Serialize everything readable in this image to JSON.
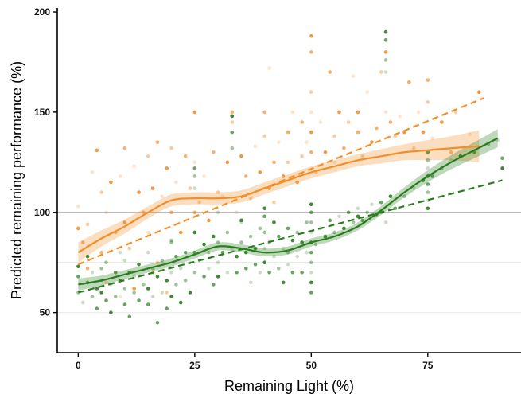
{
  "chart_data": {
    "type": "scatter",
    "title": "",
    "xlabel": "Remaining Light (%)",
    "ylabel": "Predicted remaining performance (%)",
    "xlim": [
      -4.5,
      95
    ],
    "ylim": [
      30,
      202
    ],
    "xticks": [
      "0",
      "25",
      "50",
      "75"
    ],
    "xtick_values": [
      0,
      25,
      50,
      75
    ],
    "yticks": [
      "50",
      "100",
      "150",
      "200"
    ],
    "ytick_values": [
      50,
      100,
      150,
      200
    ],
    "reference_lines": [
      {
        "y": 100,
        "color": "#b0b0b0"
      },
      {
        "y": 75,
        "color": "#e6e6e6"
      },
      {
        "y": 50,
        "color": "#ededed"
      }
    ],
    "grid": false,
    "legend": "none",
    "series": [
      {
        "color": "#f28e2b",
        "smooth": {
          "x": [
            0,
            5,
            10,
            15,
            20,
            25,
            30,
            35,
            40,
            45,
            50,
            55,
            60,
            65,
            70,
            75,
            80,
            86
          ],
          "y": [
            80,
            87,
            93,
            100,
            106,
            107,
            107,
            108,
            112,
            116,
            120,
            123,
            126,
            128,
            130,
            131,
            132,
            133
          ],
          "ci_half_width": [
            5,
            4,
            3.5,
            3,
            3,
            3,
            3,
            3,
            3,
            3,
            3,
            3,
            3,
            3.5,
            4,
            5,
            6,
            8
          ]
        },
        "linear": {
          "x": [
            0,
            87
          ],
          "y": [
            74,
            157
          ]
        },
        "points": [
          [
            0,
            103
          ],
          [
            0,
            92
          ],
          [
            1,
            85
          ],
          [
            2,
            94
          ],
          [
            3,
            120
          ],
          [
            4,
            131
          ],
          [
            5,
            80
          ],
          [
            5,
            110
          ],
          [
            6,
            100
          ],
          [
            7,
            115
          ],
          [
            8,
            90
          ],
          [
            8,
            70
          ],
          [
            9,
            118
          ],
          [
            10,
            95
          ],
          [
            10,
            132
          ],
          [
            11,
            82
          ],
          [
            12,
            123
          ],
          [
            13,
            110
          ],
          [
            14,
            100
          ],
          [
            15,
            128
          ],
          [
            15,
            90
          ],
          [
            16,
            112
          ],
          [
            17,
            135
          ],
          [
            17,
            75
          ],
          [
            18,
            108
          ],
          [
            19,
            122
          ],
          [
            20,
            100
          ],
          [
            20,
            132
          ],
          [
            21,
            115
          ],
          [
            22,
            90
          ],
          [
            23,
            128
          ],
          [
            24,
            112
          ],
          [
            25,
            125
          ],
          [
            25,
            150
          ],
          [
            25,
            100
          ],
          [
            26,
            105
          ],
          [
            27,
            118
          ],
          [
            28,
            96
          ],
          [
            29,
            130
          ],
          [
            30,
            110
          ],
          [
            31,
            108
          ],
          [
            32,
            125
          ],
          [
            33,
            150
          ],
          [
            33,
            145
          ],
          [
            34,
            100
          ],
          [
            35,
            128
          ],
          [
            36,
            118
          ],
          [
            37,
            107
          ],
          [
            38,
            133
          ],
          [
            39,
            120
          ],
          [
            40,
            150
          ],
          [
            40,
            138
          ],
          [
            41,
            172
          ],
          [
            41,
            112
          ],
          [
            42,
            125
          ],
          [
            42,
            105
          ],
          [
            43,
            135
          ],
          [
            44,
            118
          ],
          [
            45,
            140
          ],
          [
            45,
            125
          ],
          [
            46,
            150
          ],
          [
            47,
            115
          ],
          [
            48,
            145
          ],
          [
            48,
            128
          ],
          [
            49,
            135
          ],
          [
            50,
            188
          ],
          [
            50,
            180
          ],
          [
            50,
            160
          ],
          [
            50,
            150
          ],
          [
            50,
            140
          ],
          [
            50,
            130
          ],
          [
            51,
            120
          ],
          [
            52,
            145
          ],
          [
            53,
            130
          ],
          [
            54,
            170
          ],
          [
            55,
            138
          ],
          [
            55,
            125
          ],
          [
            56,
            150
          ],
          [
            57,
            132
          ],
          [
            58,
            145
          ],
          [
            59,
            168
          ],
          [
            60,
            150
          ],
          [
            60,
            140
          ],
          [
            61,
            128
          ],
          [
            62,
            160
          ],
          [
            63,
            135
          ],
          [
            64,
            142
          ],
          [
            65,
            170
          ],
          [
            66,
            150
          ],
          [
            66,
            180
          ],
          [
            67,
            145
          ],
          [
            68,
            138
          ],
          [
            69,
            148
          ],
          [
            70,
            140
          ],
          [
            71,
            165
          ],
          [
            72,
            132
          ],
          [
            73,
            150
          ],
          [
            74,
            140
          ],
          [
            75,
            166
          ],
          [
            75,
            155
          ],
          [
            76,
            137
          ],
          [
            78,
            145
          ],
          [
            80,
            130
          ],
          [
            81,
            150
          ],
          [
            84,
            139
          ],
          [
            86,
            160
          ],
          [
            2,
            72
          ],
          [
            6,
            65
          ],
          [
            9,
            58
          ],
          [
            12,
            62
          ],
          [
            16,
            70
          ],
          [
            19,
            60
          ]
        ]
      },
      {
        "color": "#2a7d1f",
        "smooth": {
          "x": [
            0,
            5,
            10,
            15,
            20,
            25,
            30,
            35,
            40,
            45,
            50,
            55,
            60,
            65,
            70,
            75,
            80,
            85,
            90
          ],
          "y": [
            64,
            66,
            69,
            72,
            75,
            79,
            83,
            82,
            80,
            81,
            85,
            88,
            93,
            101,
            110,
            118,
            125,
            131,
            137
          ],
          "ci_half_width": [
            3,
            2.5,
            2.2,
            2,
            2,
            2,
            2,
            2,
            2,
            2,
            2,
            2,
            2,
            2.2,
            2.5,
            3,
            3.5,
            4,
            4.5
          ]
        },
        "linear": {
          "x": [
            0,
            91
          ],
          "y": [
            60,
            116
          ]
        },
        "points": [
          [
            0,
            73
          ],
          [
            0,
            68
          ],
          [
            0,
            60
          ],
          [
            1,
            55
          ],
          [
            2,
            78
          ],
          [
            2,
            65
          ],
          [
            3,
            58
          ],
          [
            3,
            70
          ],
          [
            4,
            62
          ],
          [
            4,
            52
          ],
          [
            5,
            72
          ],
          [
            5,
            66
          ],
          [
            5,
            60
          ],
          [
            6,
            56
          ],
          [
            6,
            75
          ],
          [
            7,
            64
          ],
          [
            7,
            50
          ],
          [
            8,
            70
          ],
          [
            8,
            58
          ],
          [
            9,
            80
          ],
          [
            9,
            66
          ],
          [
            10,
            54
          ],
          [
            10,
            62
          ],
          [
            10,
            76
          ],
          [
            11,
            70
          ],
          [
            11,
            48
          ],
          [
            12,
            60
          ],
          [
            12,
            68
          ],
          [
            13,
            74
          ],
          [
            13,
            56
          ],
          [
            14,
            64
          ],
          [
            15,
            80
          ],
          [
            15,
            62
          ],
          [
            15,
            54
          ],
          [
            16,
            72
          ],
          [
            16,
            58
          ],
          [
            17,
            68
          ],
          [
            17,
            45
          ],
          [
            18,
            76
          ],
          [
            18,
            60
          ],
          [
            19,
            66
          ],
          [
            19,
            52
          ],
          [
            20,
            85
          ],
          [
            20,
            70
          ],
          [
            20,
            58
          ],
          [
            21,
            78
          ],
          [
            21,
            64
          ],
          [
            22,
            72
          ],
          [
            22,
            55
          ],
          [
            23,
            80
          ],
          [
            23,
            66
          ],
          [
            24,
            75
          ],
          [
            24,
            60
          ],
          [
            25,
            122
          ],
          [
            25,
            118
          ],
          [
            25,
            112
          ],
          [
            25,
            90
          ],
          [
            25,
            80
          ],
          [
            25,
            70
          ],
          [
            26,
            76
          ],
          [
            27,
            84
          ],
          [
            27,
            68
          ],
          [
            28,
            80
          ],
          [
            28,
            72
          ],
          [
            29,
            88
          ],
          [
            29,
            64
          ],
          [
            30,
            85
          ],
          [
            30,
            75
          ],
          [
            30,
            68
          ],
          [
            31,
            80
          ],
          [
            32,
            90
          ],
          [
            32,
            70
          ],
          [
            33,
            148
          ],
          [
            33,
            140
          ],
          [
            33,
            132
          ],
          [
            33,
            82
          ],
          [
            34,
            78
          ],
          [
            34,
            70
          ],
          [
            35,
            85
          ],
          [
            35,
            95
          ],
          [
            36,
            80
          ],
          [
            36,
            72
          ],
          [
            37,
            88
          ],
          [
            37,
            65
          ],
          [
            38,
            82
          ],
          [
            38,
            74
          ],
          [
            39,
            92
          ],
          [
            39,
            70
          ],
          [
            40,
            102
          ],
          [
            40,
            98
          ],
          [
            40,
            90
          ],
          [
            40,
            82
          ],
          [
            40,
            75
          ],
          [
            41,
            70
          ],
          [
            41,
            85
          ],
          [
            42,
            78
          ],
          [
            42,
            95
          ],
          [
            43,
            88
          ],
          [
            43,
            72
          ],
          [
            44,
            82
          ],
          [
            44,
            65
          ],
          [
            45,
            92
          ],
          [
            45,
            80
          ],
          [
            45,
            74
          ],
          [
            46,
            86
          ],
          [
            46,
            70
          ],
          [
            47,
            90
          ],
          [
            47,
            78
          ],
          [
            48,
            85
          ],
          [
            48,
            70
          ],
          [
            49,
            95
          ],
          [
            49,
            80
          ],
          [
            50,
            104
          ],
          [
            50,
            100
          ],
          [
            50,
            95
          ],
          [
            50,
            90
          ],
          [
            50,
            85
          ],
          [
            50,
            80
          ],
          [
            50,
            75
          ],
          [
            50,
            70
          ],
          [
            50,
            65
          ],
          [
            50,
            60
          ],
          [
            51,
            84
          ],
          [
            52,
            92
          ],
          [
            53,
            88
          ],
          [
            54,
            96
          ],
          [
            55,
            90
          ],
          [
            56,
            98
          ],
          [
            57,
            92
          ],
          [
            58,
            100
          ],
          [
            59,
            95
          ],
          [
            60,
            102
          ],
          [
            60,
            98
          ],
          [
            61,
            96
          ],
          [
            62,
            100
          ],
          [
            63,
            104
          ],
          [
            64,
            99
          ],
          [
            65,
            105
          ],
          [
            65,
            100
          ],
          [
            66,
            95
          ],
          [
            66,
            190
          ],
          [
            66,
            186
          ],
          [
            66,
            176
          ],
          [
            66,
            170
          ],
          [
            67,
            108
          ],
          [
            68,
            102
          ],
          [
            70,
            108
          ],
          [
            72,
            112
          ],
          [
            74,
            116
          ],
          [
            75,
            130
          ],
          [
            75,
            126
          ],
          [
            75,
            122
          ],
          [
            75,
            118
          ],
          [
            75,
            114
          ],
          [
            75,
            110
          ],
          [
            75,
            106
          ],
          [
            75,
            102
          ],
          [
            76,
            118
          ],
          [
            78,
            122
          ],
          [
            80,
            126
          ],
          [
            82,
            128
          ],
          [
            85,
            130
          ],
          [
            88,
            134
          ],
          [
            90,
            136
          ],
          [
            91,
            122
          ],
          [
            91,
            127
          ],
          [
            20,
            86
          ],
          [
            30,
            100
          ],
          [
            35,
            96
          ]
        ]
      }
    ]
  }
}
